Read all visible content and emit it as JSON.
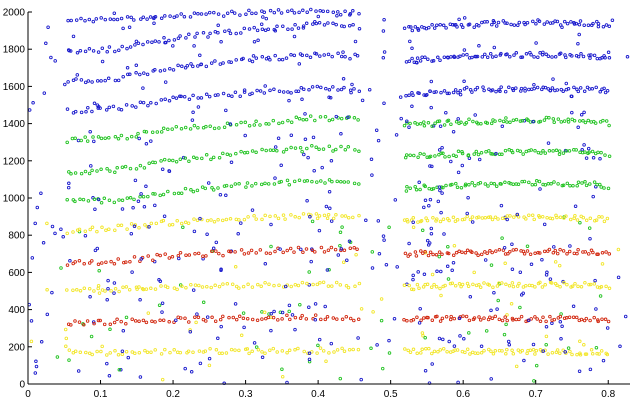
{
  "chart_data": {
    "type": "scatter",
    "title": "",
    "xlabel": "",
    "ylabel": "",
    "xlim": [
      0,
      0.83
    ],
    "ylim": [
      0,
      2000
    ],
    "grid": false,
    "legend": "none",
    "x_ticks": [
      0,
      0.1,
      0.2,
      0.3,
      0.4,
      0.5,
      0.6,
      0.7,
      0.8
    ],
    "x_tick_labels": [
      "0",
      "0.1",
      "0.2",
      "0.3",
      "0.4",
      "0.5",
      "0.6",
      "0.7",
      "0.8"
    ],
    "y_ticks": [
      0,
      200,
      400,
      600,
      800,
      1000,
      1200,
      1400,
      1600,
      1800,
      2000
    ],
    "y_tick_labels": [
      "0",
      "200",
      "400",
      "600",
      "800",
      "1000",
      "1200",
      "1400",
      "1600",
      "1800",
      "2000"
    ],
    "marker_colors": {
      "blue": "#1a1acd",
      "green": "#22c322",
      "yellow": "#f2e62a",
      "red": "#d22810"
    },
    "segments": [
      [
        0.055,
        0.455
      ],
      [
        0.52,
        0.8
      ]
    ],
    "tracks": [
      {
        "segment": 0,
        "color": "yellow",
        "x": [
          0.055,
          0.12,
          0.2,
          0.3,
          0.4,
          0.455
        ],
        "y": [
          170,
          168,
          175,
          178,
          180,
          178
        ]
      },
      {
        "segment": 0,
        "color": "red",
        "x": [
          0.055,
          0.12,
          0.2,
          0.3,
          0.4,
          0.455
        ],
        "y": [
          330,
          335,
          345,
          352,
          360,
          355
        ]
      },
      {
        "segment": 0,
        "color": "yellow",
        "x": [
          0.055,
          0.12,
          0.2,
          0.3,
          0.4,
          0.455
        ],
        "y": [
          500,
          510,
          520,
          530,
          540,
          530
        ]
      },
      {
        "segment": 0,
        "color": "red",
        "x": [
          0.055,
          0.12,
          0.2,
          0.3,
          0.4,
          0.455
        ],
        "y": [
          650,
          660,
          690,
          710,
          725,
          720
        ]
      },
      {
        "segment": 0,
        "color": "yellow",
        "x": [
          0.055,
          0.12,
          0.2,
          0.3,
          0.4,
          0.455
        ],
        "y": [
          820,
          840,
          870,
          890,
          905,
          900
        ]
      },
      {
        "segment": 0,
        "color": "green",
        "x": [
          0.055,
          0.12,
          0.2,
          0.3,
          0.4,
          0.455
        ],
        "y": [
          980,
          990,
          1030,
          1070,
          1090,
          1080
        ]
      },
      {
        "segment": 0,
        "color": "green",
        "x": [
          0.055,
          0.12,
          0.2,
          0.3,
          0.4,
          0.455
        ],
        "y": [
          1140,
          1150,
          1200,
          1240,
          1270,
          1260
        ]
      },
      {
        "segment": 0,
        "color": "green",
        "x": [
          0.055,
          0.12,
          0.2,
          0.3,
          0.4,
          0.455
        ],
        "y": [
          1310,
          1320,
          1370,
          1400,
          1430,
          1420
        ]
      },
      {
        "segment": 0,
        "color": "blue",
        "x": [
          0.055,
          0.12,
          0.2,
          0.3,
          0.4,
          0.455
        ],
        "y": [
          1470,
          1480,
          1530,
          1560,
          1590,
          1580
        ]
      },
      {
        "segment": 0,
        "color": "blue",
        "x": [
          0.055,
          0.12,
          0.2,
          0.3,
          0.4,
          0.455
        ],
        "y": [
          1630,
          1640,
          1700,
          1740,
          1770,
          1760
        ]
      },
      {
        "segment": 0,
        "color": "blue",
        "x": [
          0.055,
          0.12,
          0.2,
          0.3,
          0.4,
          0.455
        ],
        "y": [
          1790,
          1800,
          1860,
          1900,
          1930,
          1920
        ]
      },
      {
        "segment": 0,
        "color": "blue",
        "x": [
          0.055,
          0.12,
          0.2,
          0.3,
          0.4,
          0.455
        ],
        "y": [
          1950,
          1960,
          1985,
          1995,
          2000,
          1995
        ]
      },
      {
        "segment": 1,
        "color": "yellow",
        "x": [
          0.52,
          0.6,
          0.7,
          0.78,
          0.8
        ],
        "y": [
          180,
          175,
          172,
          170,
          168
        ]
      },
      {
        "segment": 1,
        "color": "red",
        "x": [
          0.52,
          0.6,
          0.7,
          0.78,
          0.8
        ],
        "y": [
          350,
          352,
          350,
          348,
          345
        ]
      },
      {
        "segment": 1,
        "color": "yellow",
        "x": [
          0.52,
          0.6,
          0.7,
          0.78,
          0.8
        ],
        "y": [
          520,
          530,
          535,
          530,
          525
        ]
      },
      {
        "segment": 1,
        "color": "red",
        "x": [
          0.52,
          0.6,
          0.7,
          0.78,
          0.8
        ],
        "y": [
          700,
          705,
          710,
          712,
          705
        ]
      },
      {
        "segment": 1,
        "color": "yellow",
        "x": [
          0.52,
          0.6,
          0.7,
          0.78,
          0.8
        ],
        "y": [
          880,
          890,
          895,
          892,
          880
        ]
      },
      {
        "segment": 1,
        "color": "green",
        "x": [
          0.52,
          0.6,
          0.7,
          0.78,
          0.8
        ],
        "y": [
          1050,
          1070,
          1080,
          1075,
          1060
        ]
      },
      {
        "segment": 1,
        "color": "green",
        "x": [
          0.52,
          0.6,
          0.7,
          0.78,
          0.8
        ],
        "y": [
          1220,
          1240,
          1250,
          1245,
          1230
        ]
      },
      {
        "segment": 1,
        "color": "green",
        "x": [
          0.52,
          0.6,
          0.7,
          0.78,
          0.8
        ],
        "y": [
          1390,
          1410,
          1420,
          1415,
          1400
        ]
      },
      {
        "segment": 1,
        "color": "blue",
        "x": [
          0.52,
          0.6,
          0.7,
          0.78,
          0.8
        ],
        "y": [
          1560,
          1580,
          1590,
          1585,
          1570
        ]
      },
      {
        "segment": 1,
        "color": "blue",
        "x": [
          0.52,
          0.6,
          0.7,
          0.78,
          0.8
        ],
        "y": [
          1740,
          1760,
          1770,
          1765,
          1750
        ]
      },
      {
        "segment": 1,
        "color": "blue",
        "x": [
          0.52,
          0.6,
          0.7,
          0.78,
          0.8
        ],
        "y": [
          1910,
          1930,
          1945,
          1940,
          1925
        ]
      }
    ],
    "scatter_noise": {
      "points_per_track": 70,
      "background_points": 240
    }
  }
}
